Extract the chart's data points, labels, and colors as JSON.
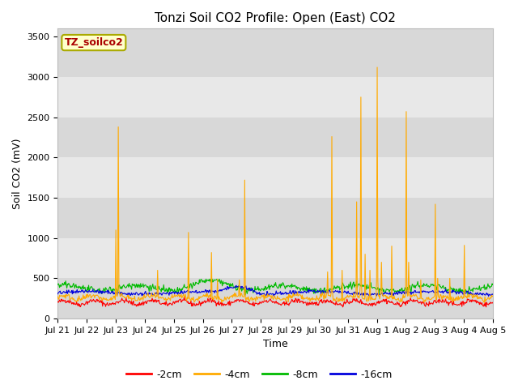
{
  "title": "Tonzi Soil CO2 Profile: Open (East) CO2",
  "ylabel": "Soil CO2 (mV)",
  "xlabel": "Time",
  "ylim": [
    0,
    3600
  ],
  "yticks": [
    0,
    500,
    1000,
    1500,
    2000,
    2500,
    3000,
    3500
  ],
  "xtick_labels": [
    "Jul 21",
    "Jul 22",
    "Jul 23",
    "Jul 24",
    "Jul 25",
    "Jul 26",
    "Jul 27",
    "Jul 28",
    "Jul 29",
    "Jul 30",
    "Jul 31",
    "Aug 1",
    "Aug 2",
    "Aug 3",
    "Aug 4",
    "Aug 5"
  ],
  "series_colors": {
    "-2cm": "#ff0000",
    "-4cm": "#ffaa00",
    "-8cm": "#00bb00",
    "-16cm": "#0000dd"
  },
  "legend_label": "TZ_soilco2",
  "legend_box_facecolor": "#ffffcc",
  "legend_box_edgecolor": "#aaaa00",
  "legend_text_color": "#aa0000",
  "band_colors": [
    "#d8d8d8",
    "#e8e8e8"
  ],
  "fig_facecolor": "#ffffff",
  "title_fontsize": 11,
  "axis_fontsize": 9,
  "tick_fontsize": 8
}
